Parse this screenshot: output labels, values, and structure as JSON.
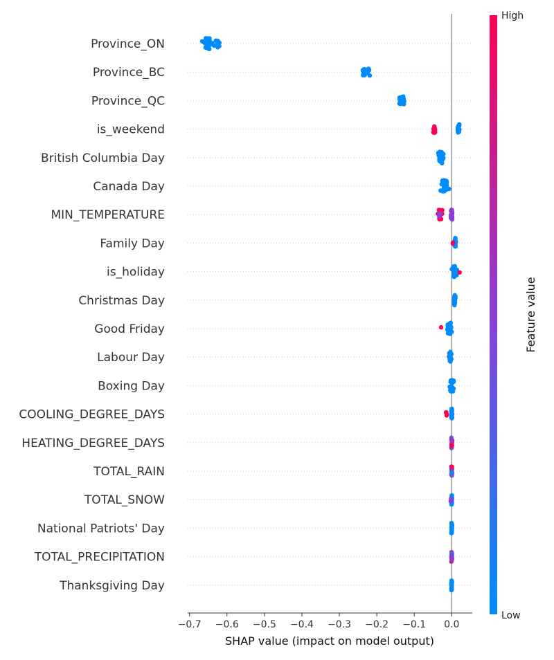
{
  "chart_data": {
    "type": "scatter",
    "subtype": "shap-beeswarm",
    "xlabel": "SHAP value (impact on model output)",
    "xlim": [
      -0.705,
      0.055
    ],
    "x_ticks": [
      -0.7,
      -0.6,
      -0.5,
      -0.4,
      -0.3,
      -0.2,
      -0.1,
      0.0
    ],
    "x_tick_labels": [
      "−0.7",
      "−0.6",
      "−0.5",
      "−0.4",
      "−0.3",
      "−0.2",
      "−0.1",
      "0.0"
    ],
    "reference_line_x": 0.0,
    "grid": false,
    "colorbar": {
      "title": "Feature value",
      "high_label": "High",
      "low_label": "Low",
      "low_color": "#008bfb",
      "mid_color": "#8a3fd6",
      "high_color": "#ff0052"
    },
    "features": [
      {
        "name": "Province_ON",
        "clusters": [
          {
            "x": -0.655,
            "spread": 0.012,
            "n": 26,
            "color": "low"
          },
          {
            "x": -0.625,
            "spread": 0.006,
            "n": 16,
            "color": "low"
          },
          {
            "x": -0.64,
            "spread": 0.002,
            "n": 3,
            "color": "low"
          }
        ]
      },
      {
        "name": "Province_BC",
        "clusters": [
          {
            "x": -0.235,
            "spread": 0.003,
            "n": 16,
            "color": "low"
          },
          {
            "x": -0.224,
            "spread": 0.004,
            "n": 14,
            "color": "low"
          }
        ]
      },
      {
        "name": "Province_QC",
        "clusters": [
          {
            "x": -0.138,
            "spread": 0.002,
            "n": 14,
            "color": "low"
          },
          {
            "x": -0.13,
            "spread": 0.004,
            "n": 18,
            "color": "low"
          }
        ]
      },
      {
        "name": "is_weekend",
        "clusters": [
          {
            "x": -0.047,
            "spread": 0.003,
            "n": 16,
            "color": "high"
          },
          {
            "x": 0.018,
            "spread": 0.002,
            "n": 22,
            "color": "low"
          }
        ]
      },
      {
        "name": "British Columbia Day",
        "clusters": [
          {
            "x": -0.028,
            "spread": 0.006,
            "n": 30,
            "color": "low"
          }
        ]
      },
      {
        "name": "Canada Day",
        "clusters": [
          {
            "x": -0.02,
            "spread": 0.009,
            "n": 32,
            "color": "low"
          }
        ]
      },
      {
        "name": "MIN_TEMPERATURE",
        "clusters": [
          {
            "x": -0.03,
            "spread": 0.004,
            "n": 26,
            "color": "high"
          },
          {
            "x": -0.032,
            "spread": 0.002,
            "n": 6,
            "color": "mid"
          },
          {
            "x": 0.0,
            "spread": 0.002,
            "n": 24,
            "color": "mid"
          }
        ]
      },
      {
        "name": "Family Day",
        "clusters": [
          {
            "x": 0.009,
            "spread": 0.002,
            "n": 24,
            "color": "low"
          },
          {
            "x": 0.003,
            "spread": 0.001,
            "n": 2,
            "color": "high"
          }
        ]
      },
      {
        "name": "is_holiday",
        "clusters": [
          {
            "x": 0.008,
            "spread": 0.005,
            "n": 28,
            "color": "low"
          },
          {
            "x": 0.021,
            "spread": 0.001,
            "n": 1,
            "color": "high"
          }
        ]
      },
      {
        "name": "Christmas Day",
        "clusters": [
          {
            "x": 0.008,
            "spread": 0.002,
            "n": 24,
            "color": "low"
          }
        ]
      },
      {
        "name": "Good Friday",
        "clusters": [
          {
            "x": -0.006,
            "spread": 0.005,
            "n": 30,
            "color": "low"
          },
          {
            "x": -0.028,
            "spread": 0.001,
            "n": 1,
            "color": "high"
          }
        ]
      },
      {
        "name": "Labour Day",
        "clusters": [
          {
            "x": -0.004,
            "spread": 0.003,
            "n": 26,
            "color": "low"
          }
        ]
      },
      {
        "name": "Boxing Day",
        "clusters": [
          {
            "x": 0.0,
            "spread": 0.004,
            "n": 28,
            "color": "low"
          }
        ]
      },
      {
        "name": "COOLING_DEGREE_DAYS",
        "clusters": [
          {
            "x": 0.0,
            "spread": 0.001,
            "n": 26,
            "color": "low"
          },
          {
            "x": -0.014,
            "spread": 0.002,
            "n": 4,
            "color": "high"
          }
        ]
      },
      {
        "name": "HEATING_DEGREE_DAYS",
        "clusters": [
          {
            "x": 0.0,
            "spread": 0.001,
            "n": 26,
            "color": "mixed"
          }
        ]
      },
      {
        "name": "TOTAL_RAIN",
        "clusters": [
          {
            "x": 0.0,
            "spread": 0.001,
            "n": 26,
            "color": "mixed"
          }
        ]
      },
      {
        "name": "TOTAL_SNOW",
        "clusters": [
          {
            "x": 0.0,
            "spread": 0.001,
            "n": 24,
            "color": "low"
          },
          {
            "x": -0.002,
            "spread": 0.001,
            "n": 3,
            "color": "mid"
          }
        ]
      },
      {
        "name": "National Patriots' Day",
        "clusters": [
          {
            "x": 0.0,
            "spread": 0.0008,
            "n": 24,
            "color": "low"
          }
        ]
      },
      {
        "name": "TOTAL_PRECIPITATION",
        "clusters": [
          {
            "x": 0.0,
            "spread": 0.001,
            "n": 24,
            "color": "mixed"
          }
        ]
      },
      {
        "name": "Thanksgiving Day",
        "clusters": [
          {
            "x": 0.0,
            "spread": 0.0008,
            "n": 24,
            "color": "low"
          }
        ]
      }
    ]
  }
}
